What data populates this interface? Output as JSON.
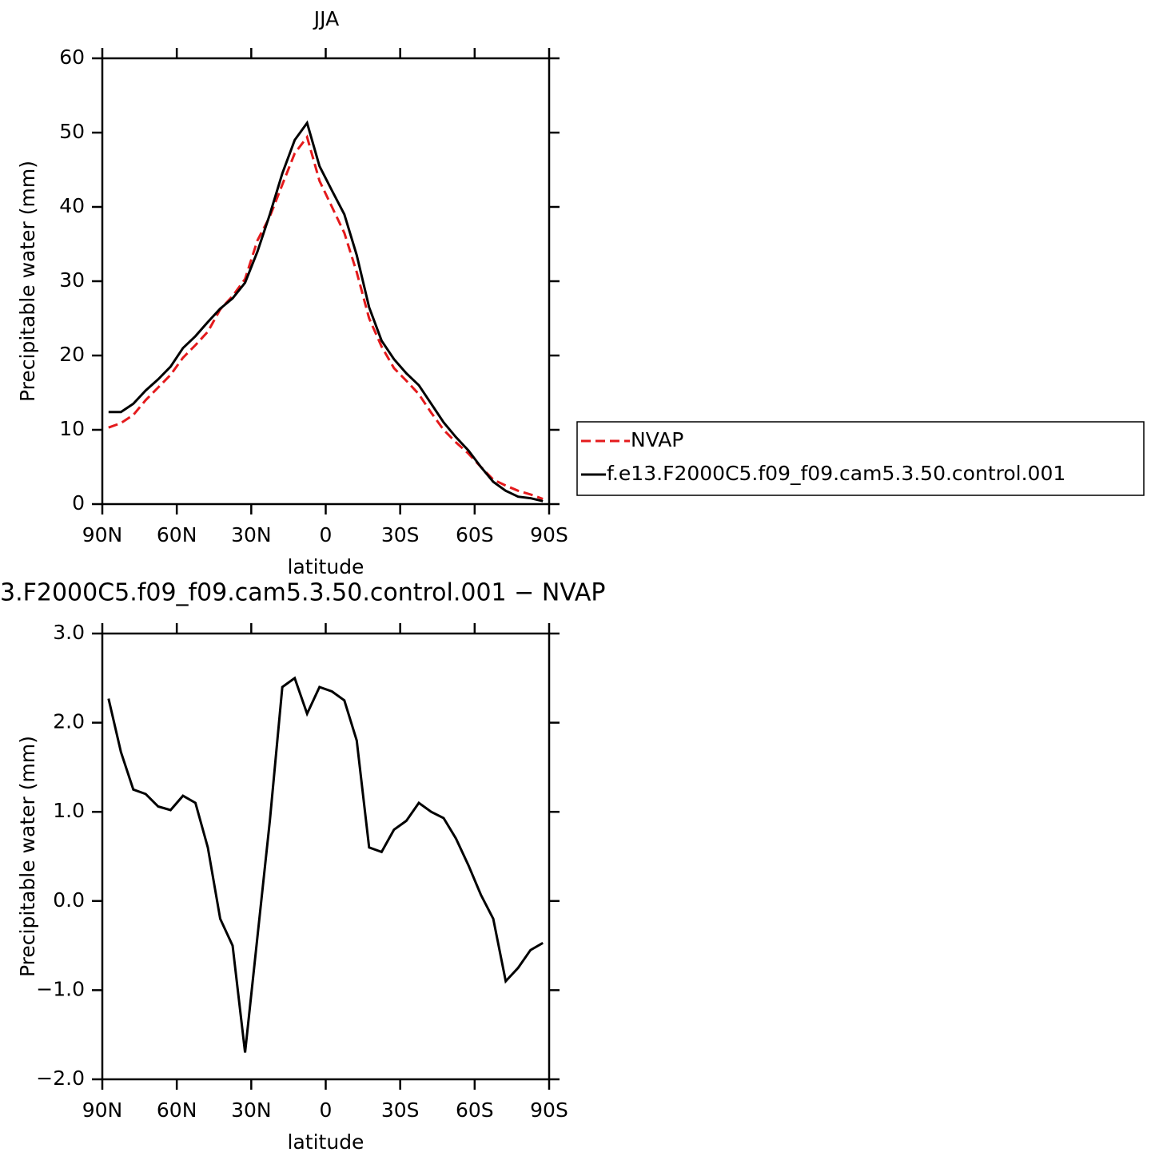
{
  "chart_data": [
    {
      "type": "line",
      "title": "JJA",
      "x_label": "latitude",
      "y_label": "Precipitable water (mm)",
      "x": [
        87.5,
        82.5,
        77.5,
        72.5,
        67.5,
        62.5,
        57.5,
        52.5,
        47.5,
        42.5,
        37.5,
        32.5,
        27.5,
        22.5,
        17.5,
        12.5,
        7.5,
        2.5,
        -2.5,
        -7.5,
        -12.5,
        -17.5,
        -22.5,
        -27.5,
        -32.5,
        -37.5,
        -42.5,
        -47.5,
        -52.5,
        -57.5,
        -62.5,
        -67.5,
        -72.5,
        -77.5,
        -82.5,
        -87.5
      ],
      "xlim": [
        90,
        -90
      ],
      "xticks": [
        {
          "value": 90,
          "label": "90N"
        },
        {
          "value": 60,
          "label": "60N"
        },
        {
          "value": 30,
          "label": "30N"
        },
        0,
        {
          "value": -30,
          "label": "30S"
        },
        {
          "value": -60,
          "label": "60S"
        },
        {
          "value": -90,
          "label": "90S"
        }
      ],
      "ylim": [
        0,
        60
      ],
      "yticks": [
        0,
        10,
        20,
        30,
        40,
        50,
        60
      ],
      "series": [
        {
          "name": "NVAP",
          "color": "#e41a1c",
          "linestyle": "dashed",
          "values": [
            10.3,
            10.9,
            12,
            14,
            15.7,
            17.4,
            19.7,
            21.4,
            23.2,
            26.2,
            28,
            30.3,
            35.5,
            38.7,
            43,
            47.2,
            49.4,
            43.5,
            40,
            36.5,
            31.2,
            25,
            21.2,
            18.3,
            16.6,
            14.8,
            12.3,
            10,
            8.3,
            6.8,
            5,
            3.3,
            2.5,
            1.8,
            1.3,
            0.7
          ]
        },
        {
          "name": "f.e13.F2000C5.f09_f09.cam5.3.50.control.001",
          "color": "#000000",
          "linestyle": "solid",
          "values": [
            12.4,
            12.4,
            13.5,
            15.3,
            16.8,
            18.5,
            21,
            22.6,
            24.5,
            26.3,
            27.7,
            29.8,
            34,
            39,
            44.5,
            49,
            51.3,
            45.5,
            42.2,
            39,
            33.5,
            26.5,
            22,
            19.5,
            17.6,
            16,
            13.5,
            11,
            9,
            7.2,
            5,
            3,
            1.8,
            1,
            0.8,
            0.4
          ]
        }
      ]
    },
    {
      "type": "line",
      "title": "3.F2000C5.f09_f09.cam5.3.50.control.001  −  NVAP",
      "x_label": "latitude",
      "y_label": "Precipitable water (mm)",
      "x": [
        87.5,
        82.5,
        77.5,
        72.5,
        67.5,
        62.5,
        57.5,
        52.5,
        47.5,
        42.5,
        37.5,
        32.5,
        27.5,
        22.5,
        17.5,
        12.5,
        7.5,
        2.5,
        -2.5,
        -7.5,
        -12.5,
        -17.5,
        -22.5,
        -27.5,
        -32.5,
        -37.5,
        -42.5,
        -47.5,
        -52.5,
        -57.5,
        -62.5,
        -67.5,
        -72.5,
        -77.5,
        -82.5,
        -87.5
      ],
      "xlim": [
        90,
        -90
      ],
      "xticks": [
        {
          "value": 90,
          "label": "90N"
        },
        {
          "value": 60,
          "label": "60N"
        },
        {
          "value": 30,
          "label": "30N"
        },
        0,
        {
          "value": -30,
          "label": "30S"
        },
        {
          "value": -60,
          "label": "60S"
        },
        {
          "value": -90,
          "label": "90S"
        }
      ],
      "ylim": [
        -2,
        3
      ],
      "yticks": [
        {
          "value": -2,
          "label": "−2.0"
        },
        {
          "value": -1,
          "label": "−1.0"
        },
        {
          "value": 0,
          "label": "0.0"
        },
        {
          "value": 1,
          "label": "1.0"
        },
        {
          "value": 2,
          "label": "2.0"
        },
        {
          "value": 3,
          "label": "3.0"
        }
      ],
      "series": [
        {
          "color": "#000000",
          "linestyle": "solid",
          "values": [
            2.27,
            1.67,
            1.25,
            1.2,
            1.06,
            1.02,
            1.18,
            1.1,
            0.6,
            -0.2,
            -0.5,
            -1.7,
            -0.4,
            0.9,
            2.4,
            2.5,
            2.1,
            2.4,
            2.35,
            2.25,
            1.8,
            0.6,
            0.55,
            0.8,
            0.9,
            1.1,
            1,
            0.93,
            0.7,
            0.4,
            0.07,
            -0.2,
            -0.9,
            -0.75,
            -0.55,
            -0.47
          ]
        }
      ]
    }
  ]
}
